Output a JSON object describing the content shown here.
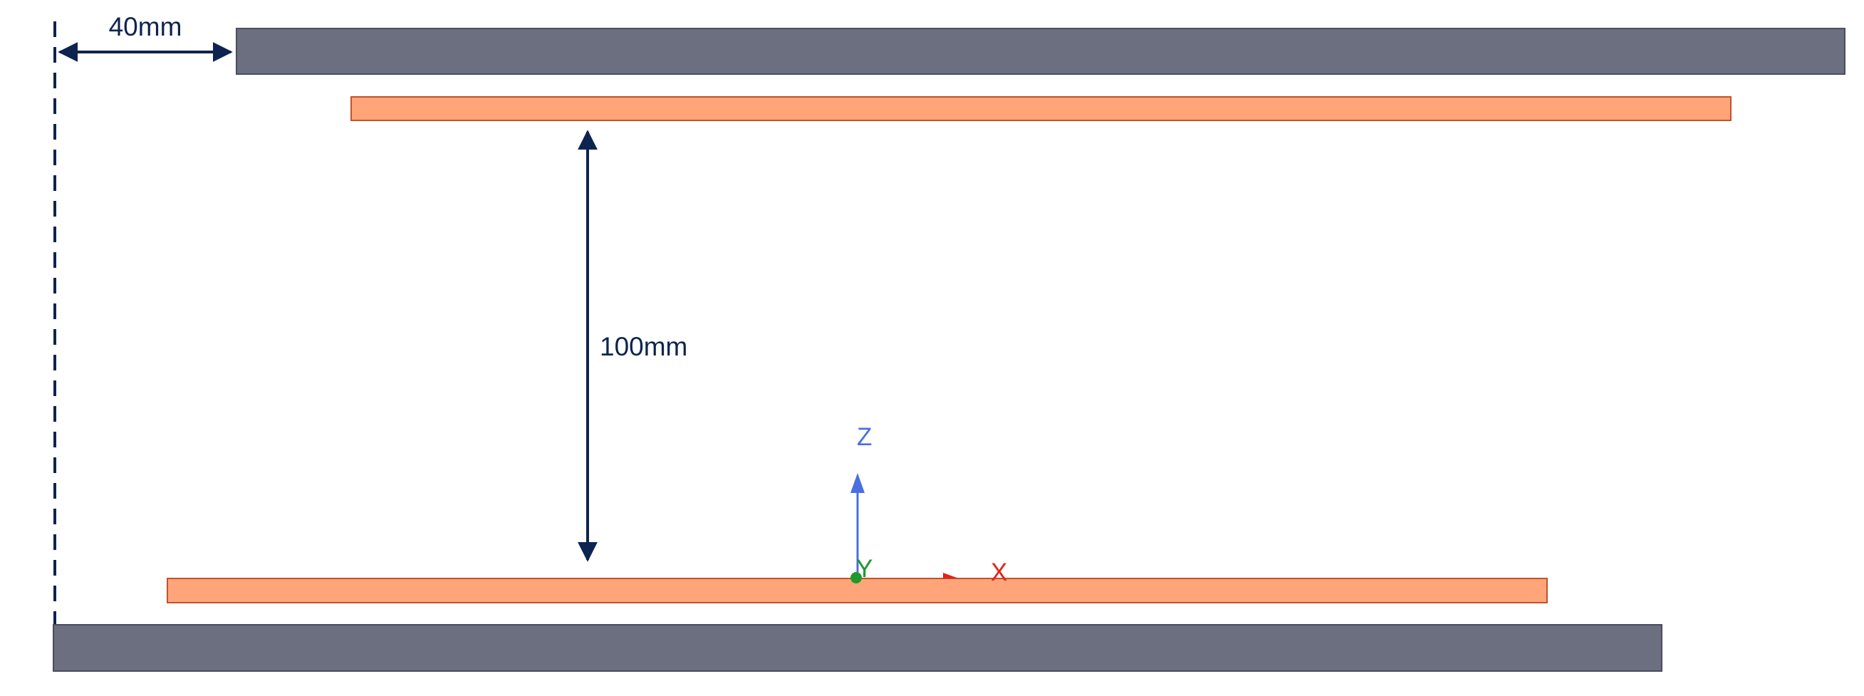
{
  "dimensions": {
    "horizontal_offset_label": "40mm",
    "vertical_gap_label": "100mm"
  },
  "axes": {
    "x_label": "X",
    "y_label": "Y",
    "z_label": "Z"
  },
  "colors": {
    "plate": "#6b6f80",
    "plate_edge": "#4a4d5c",
    "strip": "#ffa579",
    "strip_edge": "#c0532e",
    "dimension": "#0d2450",
    "x_axis": "#e0231b",
    "y_axis": "#1f9a2a",
    "z_axis": "#4a6fe0"
  }
}
